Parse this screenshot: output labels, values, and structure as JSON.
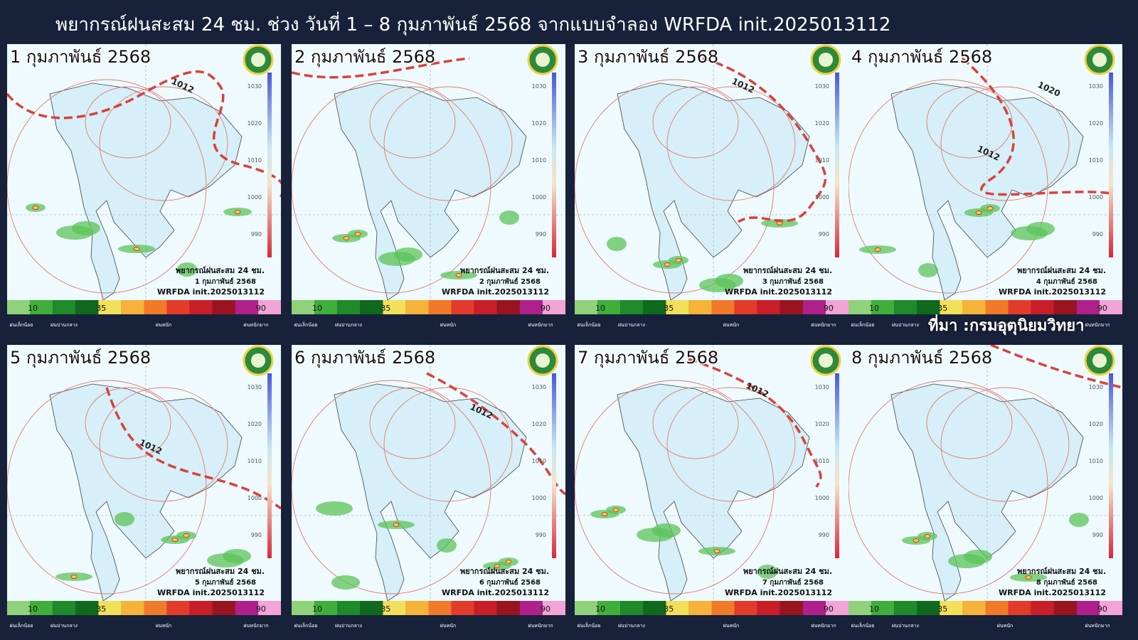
{
  "title": "พยากรณ์ฝนสะสม 24 ชม. ช่วง วันที่ 1 – 8 กุมภาพันธ์ 2568 จากแบบจำลอง WRFDA init.2025013112",
  "source": "ที่มา :กรมอุตุนิยมวิทยา",
  "panel_caption": "พยากรณ์ฝนสะสม 24 ชม.",
  "model_label": "WRFDA init.2025013112",
  "pressure_scale": [
    "1030",
    "1020",
    "1010",
    "1000",
    "990"
  ],
  "legend": {
    "ticks": [
      "10",
      "35",
      "90"
    ],
    "classes": [
      "ฝนเล็กน้อย",
      "ฝนปานกลาง",
      "ฝนหนัก",
      "ฝนหนักมาก"
    ]
  },
  "panels": [
    {
      "date": "1 กุมภาพันธ์ 2568",
      "isobar_labels": [
        "1012"
      ]
    },
    {
      "date": "2 กุมภาพันธ์ 2568"
    },
    {
      "date": "3 กุมภาพันธ์ 2568",
      "isobar_labels": [
        "1012"
      ]
    },
    {
      "date": "4 กุมภาพันธ์ 2568",
      "isobar_labels": [
        "1020",
        "1012"
      ]
    },
    {
      "date": "5 กุมภาพันธ์ 2568",
      "isobar_labels": [
        "1012"
      ]
    },
    {
      "date": "6 กุมภาพันธ์ 2568",
      "isobar_labels": [
        "1012"
      ]
    },
    {
      "date": "7 กุมภาพันธ์ 2568",
      "isobar_labels": [
        "1012"
      ]
    },
    {
      "date": "8 กุมภาพันธ์ 2568"
    }
  ]
}
